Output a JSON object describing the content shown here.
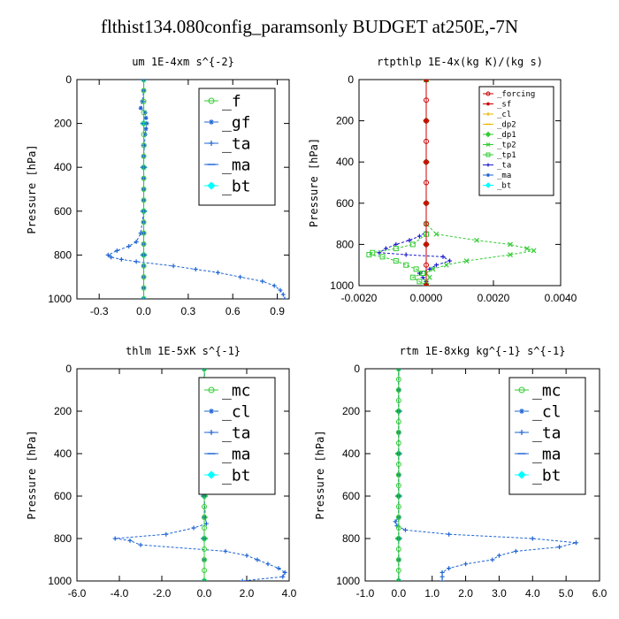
{
  "title": "flthist134.080config_paramsonly  BUDGET at250E,-7N",
  "chart_data": [
    {
      "type": "line",
      "title": "um   1E-4xm s^{-2}",
      "ylabel": "Pressure [hPa]",
      "xlim": [
        -0.45,
        0.98
      ],
      "ylim": [
        1000,
        0
      ],
      "xticks": [
        -0.3,
        0.0,
        0.3,
        0.6,
        0.9
      ],
      "xtick_labels": [
        "-0.3",
        "0.0",
        "0.3",
        "0.6",
        "0.9"
      ],
      "yticks": [
        0,
        200,
        400,
        600,
        800,
        1000
      ],
      "legend_size": "large",
      "series": [
        {
          "name": "_f",
          "color": "#33cc33",
          "y": [
            0,
            50,
            100,
            150,
            200,
            250,
            300,
            350,
            400,
            450,
            500,
            550,
            600,
            650,
            700,
            750,
            800,
            850,
            900,
            950,
            1000
          ],
          "x": [
            0,
            0,
            0,
            0,
            0,
            0,
            0,
            0,
            0,
            0,
            0,
            0,
            0,
            0,
            0,
            0,
            0,
            0,
            0,
            0,
            0
          ]
        },
        {
          "name": "_gf",
          "color": "#1e64d2",
          "y": [
            0,
            50,
            100,
            130,
            150,
            175,
            200,
            225,
            250,
            300,
            350,
            400,
            450,
            500,
            550,
            600,
            650,
            700,
            750,
            800,
            850,
            900,
            950,
            1000
          ],
          "x": [
            0,
            0,
            -0.01,
            -0.02,
            0.01,
            0.015,
            0.02,
            0.015,
            0.01,
            0.005,
            0,
            0,
            0,
            0,
            0,
            0,
            0,
            0,
            0,
            0,
            0,
            0,
            0,
            0
          ]
        },
        {
          "name": "_ta",
          "color": "#1e64d2",
          "y": [
            0,
            100,
            200,
            300,
            400,
            500,
            600,
            700,
            740,
            760,
            780,
            800,
            810,
            820,
            830,
            850,
            865,
            880,
            900,
            920,
            940,
            960,
            980,
            1000
          ],
          "x": [
            0,
            0,
            0,
            0,
            0,
            0,
            0,
            -0.02,
            -0.05,
            -0.1,
            -0.18,
            -0.24,
            -0.22,
            -0.15,
            -0.05,
            0.2,
            0.35,
            0.5,
            0.65,
            0.8,
            0.88,
            0.92,
            0.94,
            0.95
          ]
        },
        {
          "name": "_ma",
          "color": "#1e64d2",
          "y": [
            0,
            200,
            400,
            600,
            800,
            1000
          ],
          "x": [
            0,
            0,
            0,
            0,
            0,
            0
          ]
        },
        {
          "name": "_bt",
          "color": "#00ffff",
          "y": [
            0,
            200,
            400,
            600,
            800,
            1000
          ],
          "x": [
            0,
            0,
            0,
            0,
            0,
            0
          ]
        }
      ]
    },
    {
      "type": "line",
      "title": "rtpthlp   1E-4x(kg K)/(kg s)",
      "ylabel": "Pressure [hPa]",
      "xlim": [
        -0.002,
        0.004
      ],
      "ylim": [
        1000,
        0
      ],
      "xticks": [
        -0.002,
        0.0,
        0.002,
        0.004
      ],
      "xtick_labels": [
        "-0.0020",
        "0.0000",
        "0.0020",
        "0.0040"
      ],
      "yticks": [
        0,
        200,
        400,
        600,
        800,
        1000
      ],
      "legend_size": "small",
      "series": [
        {
          "name": "_forcing",
          "color": "#cc0000",
          "y": [
            0,
            100,
            200,
            300,
            400,
            500,
            600,
            700,
            800,
            900,
            1000
          ],
          "x": [
            0,
            0,
            0,
            0,
            0,
            0,
            0,
            0,
            0,
            0,
            0
          ]
        },
        {
          "name": "_sf",
          "color": "#cc0000",
          "y": [
            0,
            200,
            400,
            600,
            800,
            1000
          ],
          "x": [
            0,
            0,
            0,
            0,
            0,
            0
          ]
        },
        {
          "name": "_cl",
          "color": "#e6b800",
          "y": [
            0,
            200,
            400,
            600,
            800,
            1000
          ],
          "x": [
            0,
            0,
            0,
            0,
            0,
            0
          ]
        },
        {
          "name": "_dp2",
          "color": "#e6b800",
          "y": [
            0,
            200,
            400,
            600,
            800,
            1000
          ],
          "x": [
            0,
            0,
            0,
            0,
            0,
            0
          ]
        },
        {
          "name": "_dp1",
          "color": "#33cc33",
          "y": [
            0,
            200,
            400,
            600,
            800,
            1000
          ],
          "x": [
            0,
            0,
            0,
            0,
            0,
            0
          ]
        },
        {
          "name": "_tp2",
          "color": "#33cc33",
          "y": [
            0,
            700,
            750,
            780,
            800,
            820,
            830,
            850,
            880,
            900,
            920,
            940,
            960,
            980,
            1000
          ],
          "x": [
            0,
            0,
            0.0003,
            0.0015,
            0.0025,
            0.003,
            0.0032,
            0.0025,
            0.0012,
            0.0006,
            0.0002,
            0,
            0.0001,
            0,
            0
          ]
        },
        {
          "name": "_tp1",
          "color": "#33cc33",
          "y": [
            0,
            750,
            800,
            820,
            840,
            850,
            860,
            880,
            900,
            920,
            940,
            960,
            980,
            1000
          ],
          "x": [
            0,
            0,
            -0.0004,
            -0.0009,
            -0.0016,
            -0.0017,
            -0.0013,
            -0.0009,
            -0.0006,
            -0.0003,
            -0.0001,
            -0.0004,
            -0.0002,
            0
          ]
        },
        {
          "name": "_ta",
          "color": "#1e1ecc",
          "y": [
            0,
            740,
            760,
            780,
            800,
            820,
            840,
            850,
            860,
            880,
            900,
            920,
            940,
            960,
            980,
            1000
          ],
          "x": [
            0,
            0,
            -0.0002,
            -0.0005,
            -0.0009,
            -0.0012,
            -0.0014,
            -0.0006,
            0.0005,
            0.0007,
            0.0003,
            0.0001,
            -0.0002,
            -0.0001,
            0,
            0
          ]
        },
        {
          "name": "_ma",
          "color": "#1e64d2",
          "y": [
            0,
            200,
            400,
            600,
            800,
            1000
          ],
          "x": [
            0,
            0,
            0,
            0,
            0,
            0
          ]
        },
        {
          "name": "_bt",
          "color": "#00ffff",
          "y": [
            0,
            200,
            400,
            600,
            800,
            1000
          ],
          "x": [
            0,
            0,
            0,
            0,
            0,
            0
          ]
        }
      ]
    },
    {
      "type": "line",
      "title": "thlm   1E-5xK s^{-1}",
      "ylabel": "Pressure [hPa]",
      "xlim": [
        -6.0,
        4.0
      ],
      "ylim": [
        1000,
        0
      ],
      "xticks": [
        -6.0,
        -4.0,
        -2.0,
        0.0,
        2.0,
        4.0
      ],
      "xtick_labels": [
        "-6.0",
        "-4.0",
        "-2.0",
        "0.0",
        "2.0",
        "4.0"
      ],
      "yticks": [
        0,
        200,
        400,
        600,
        800,
        1000
      ],
      "legend_size": "large",
      "series": [
        {
          "name": "_mc",
          "color": "#33cc33",
          "y": [
            0,
            50,
            100,
            150,
            200,
            250,
            300,
            350,
            400,
            450,
            500,
            550,
            600,
            650,
            700,
            750,
            800,
            850,
            900,
            950,
            1000
          ],
          "x": [
            0,
            0,
            0,
            0,
            0,
            0,
            0,
            0,
            0,
            0,
            0,
            0,
            0,
            0,
            0,
            0,
            0,
            0,
            0,
            0,
            0
          ]
        },
        {
          "name": "_cl",
          "color": "#1e64d2",
          "y": [
            0,
            100,
            200,
            300,
            400,
            500,
            600,
            700,
            800,
            900,
            1000
          ],
          "x": [
            0,
            0,
            0,
            0,
            0,
            0,
            0,
            0,
            0,
            0,
            0
          ]
        },
        {
          "name": "_ta",
          "color": "#1e64d2",
          "y": [
            0,
            100,
            200,
            300,
            400,
            500,
            600,
            700,
            730,
            750,
            780,
            800,
            810,
            830,
            860,
            880,
            900,
            920,
            940,
            960,
            980,
            1000
          ],
          "x": [
            0,
            0.05,
            0.1,
            0.05,
            0,
            0,
            0,
            0.05,
            0.1,
            -0.5,
            -1.8,
            -4.2,
            -3.5,
            -3.0,
            1.0,
            2.0,
            2.5,
            3.0,
            3.5,
            3.8,
            3.7,
            1.8
          ]
        },
        {
          "name": "_ma",
          "color": "#1e64d2",
          "y": [
            0,
            200,
            400,
            600,
            800,
            1000
          ],
          "x": [
            0,
            0,
            0,
            0,
            0,
            0
          ]
        },
        {
          "name": "_bt",
          "color": "#00ffff",
          "y": [
            0,
            200,
            400,
            600,
            800,
            1000
          ],
          "x": [
            0,
            0,
            0,
            0,
            0,
            0
          ]
        }
      ]
    },
    {
      "type": "line",
      "title": "rtm   1E-8xkg kg^{-1} s^{-1}",
      "ylabel": "Pressure [hPa]",
      "xlim": [
        -1.0,
        6.0
      ],
      "ylim": [
        1000,
        0
      ],
      "xticks": [
        -1.0,
        0.0,
        1.0,
        2.0,
        3.0,
        4.0,
        5.0,
        6.0
      ],
      "xtick_labels": [
        "-1.0",
        "0.0",
        "1.0",
        "2.0",
        "3.0",
        "4.0",
        "5.0",
        "6.0"
      ],
      "yticks": [
        0,
        200,
        400,
        600,
        800,
        1000
      ],
      "legend_size": "large",
      "series": [
        {
          "name": "_mc",
          "color": "#33cc33",
          "y": [
            0,
            50,
            100,
            150,
            200,
            250,
            300,
            350,
            400,
            450,
            500,
            550,
            600,
            650,
            700,
            750,
            800,
            850,
            900,
            950,
            1000
          ],
          "x": [
            0,
            0,
            0,
            0,
            0,
            0,
            0,
            0,
            0,
            0,
            0,
            0,
            0,
            0,
            0,
            0,
            0,
            0,
            0,
            0,
            0
          ]
        },
        {
          "name": "_cl",
          "color": "#1e64d2",
          "y": [
            0,
            100,
            200,
            300,
            400,
            500,
            600,
            700,
            800,
            900,
            1000
          ],
          "x": [
            0,
            0,
            0,
            0,
            0,
            0,
            0,
            0,
            0,
            0,
            0
          ]
        },
        {
          "name": "_ta",
          "color": "#1e64d2",
          "y": [
            0,
            100,
            200,
            300,
            400,
            500,
            600,
            700,
            720,
            740,
            760,
            780,
            800,
            820,
            840,
            860,
            880,
            900,
            920,
            940,
            960,
            980,
            1000
          ],
          "x": [
            0,
            0,
            0,
            0,
            0,
            0,
            0,
            0,
            -0.1,
            -0.05,
            0.2,
            1.5,
            4.0,
            5.3,
            4.8,
            3.5,
            3.0,
            2.8,
            2.0,
            1.5,
            1.3,
            1.3,
            1.3
          ]
        },
        {
          "name": "_ma",
          "color": "#1e64d2",
          "y": [
            0,
            200,
            400,
            600,
            800,
            1000
          ],
          "x": [
            0,
            0,
            0,
            0,
            0,
            0
          ]
        },
        {
          "name": "_bt",
          "color": "#00ffff",
          "y": [
            0,
            200,
            400,
            600,
            800,
            1000
          ],
          "x": [
            0,
            0,
            0,
            0,
            0,
            0
          ]
        }
      ]
    }
  ]
}
